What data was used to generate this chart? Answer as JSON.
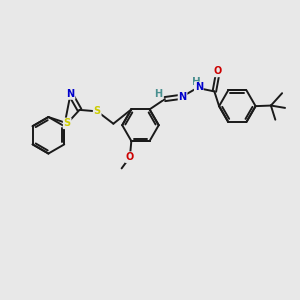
{
  "bg_color": "#e8e8e8",
  "bond_color": "#1a1a1a",
  "bond_width": 1.4,
  "atom_colors": {
    "S": "#cccc00",
    "N": "#0000cc",
    "O": "#cc0000",
    "H": "#4a9090",
    "C": "#1a1a1a"
  },
  "figsize": [
    3.0,
    3.0
  ],
  "dpi": 100,
  "xlim": [
    0,
    10
  ],
  "ylim": [
    0,
    10
  ]
}
